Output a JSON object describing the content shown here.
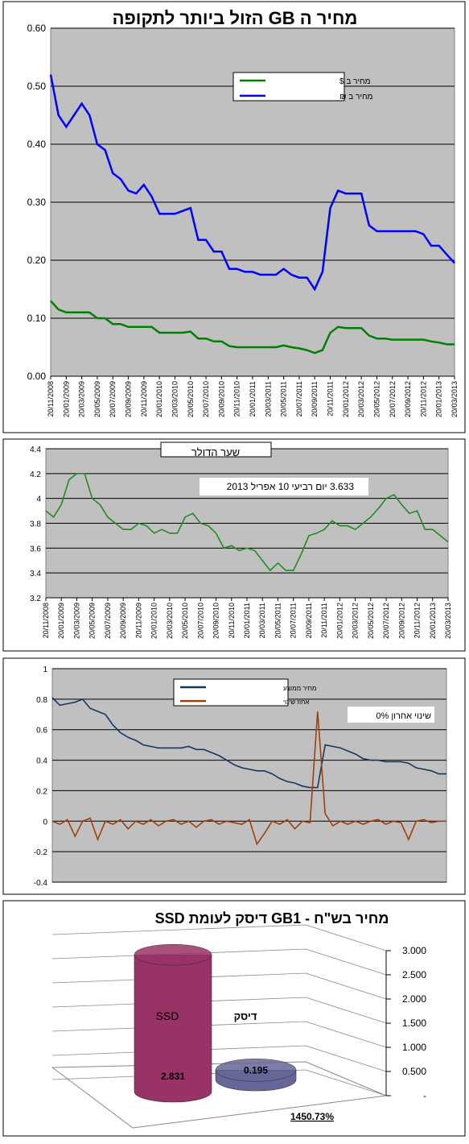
{
  "chart_data": [
    {
      "type": "line",
      "title": "מחיר ה GB הזול ביותר לתקופה",
      "categories": [
        "20/11/2008",
        null,
        "20/01/2009",
        null,
        "20/03/2009",
        null,
        "20/05/2009",
        null,
        "20/07/2009",
        null,
        "20/09/2009",
        null,
        "20/11/2009",
        null,
        "20/01/2010",
        null,
        "20/03/2010",
        null,
        "20/05/2010",
        null,
        "20/07/2010",
        null,
        "20/09/2010",
        null,
        "20/11/2010",
        null,
        "20/01/2011",
        null,
        "20/03/2011",
        null,
        "20/05/2011",
        null,
        "20/07/2011",
        null,
        "20/09/2011",
        null,
        "20/11/2011",
        null,
        "20/01/2012",
        null,
        "20/03/2012",
        null,
        "20/05/2012",
        null,
        "20/07/2012",
        null,
        "20/09/2012",
        null,
        "20/11/2012",
        null,
        "20/01/2013",
        null,
        "20/03/2013"
      ],
      "series": [
        {
          "name": "מחיר ב $",
          "color": "#008000",
          "values": [
            0.13,
            0.115,
            0.11,
            0.11,
            0.11,
            0.11,
            0.1,
            0.1,
            0.09,
            0.09,
            0.085,
            0.085,
            0.085,
            0.085,
            0.075,
            0.075,
            0.075,
            0.075,
            0.077,
            0.065,
            0.065,
            0.06,
            0.06,
            0.052,
            0.05,
            0.05,
            0.05,
            0.05,
            0.05,
            0.05,
            0.053,
            0.05,
            0.048,
            0.045,
            0.04,
            0.045,
            0.075,
            0.085,
            0.083,
            0.083,
            0.083,
            0.07,
            0.065,
            0.065,
            0.063,
            0.063,
            0.063,
            0.063,
            0.063,
            0.06,
            0.058,
            0.055,
            0.055
          ]
        },
        {
          "name": "מחיר ב ₪",
          "color": "#0000ff",
          "values": [
            0.52,
            0.45,
            0.43,
            0.45,
            0.47,
            0.45,
            0.4,
            0.39,
            0.35,
            0.34,
            0.32,
            0.315,
            0.33,
            0.31,
            0.28,
            0.28,
            0.28,
            0.285,
            0.29,
            0.235,
            0.235,
            0.215,
            0.215,
            0.185,
            0.185,
            0.18,
            0.18,
            0.175,
            0.175,
            0.175,
            0.185,
            0.175,
            0.17,
            0.17,
            0.15,
            0.18,
            0.29,
            0.32,
            0.315,
            0.315,
            0.315,
            0.26,
            0.25,
            0.25,
            0.25,
            0.25,
            0.25,
            0.25,
            0.245,
            0.225,
            0.225,
            0.21,
            0.195
          ]
        }
      ],
      "ylim": [
        0,
        0.6
      ],
      "yticks": [
        {
          "value": 0,
          "label": "0.00"
        },
        {
          "value": 0.1,
          "label": "0.10"
        },
        {
          "value": 0.2,
          "label": "0.20"
        },
        {
          "value": 0.3,
          "label": "0.30"
        },
        {
          "value": 0.4,
          "label": "0.40"
        },
        {
          "value": 0.5,
          "label": "0.50"
        },
        {
          "value": 0.6,
          "label": "0.60"
        }
      ],
      "grid": true,
      "legend": "top-right"
    },
    {
      "type": "line",
      "title": "שער הדולר",
      "annotation": "3.633 יום רביעי 10 אפריל 2013",
      "categories": [
        "20/11/2008",
        null,
        "20/01/2009",
        null,
        "20/03/2009",
        null,
        "20/05/2009",
        null,
        "20/07/2009",
        null,
        "20/09/2009",
        null,
        "20/11/2009",
        null,
        "20/01/2010",
        null,
        "20/03/2010",
        null,
        "20/05/2010",
        null,
        "20/07/2010",
        null,
        "20/09/2010",
        null,
        "20/11/2010",
        null,
        "20/01/2011",
        null,
        "20/03/2011",
        null,
        "20/05/2011",
        null,
        "20/07/2011",
        null,
        "20/09/2011",
        null,
        "20/11/2011",
        null,
        "20/01/2012",
        null,
        "20/03/2012",
        null,
        "20/05/2012",
        null,
        "20/07/2012",
        null,
        "20/09/2012",
        null,
        "20/11/2012",
        null,
        "20/01/2013",
        null,
        "20/03/2013"
      ],
      "series": [
        {
          "name": null,
          "color": "#228b22",
          "values": [
            3.9,
            3.85,
            3.95,
            4.15,
            4.2,
            4.2,
            4.0,
            3.95,
            3.85,
            3.8,
            3.75,
            3.75,
            3.8,
            3.78,
            3.72,
            3.75,
            3.72,
            3.72,
            3.85,
            3.88,
            3.8,
            3.78,
            3.72,
            3.6,
            3.62,
            3.58,
            3.6,
            3.58,
            3.5,
            3.42,
            3.48,
            3.42,
            3.42,
            3.55,
            3.7,
            3.72,
            3.75,
            3.82,
            3.78,
            3.78,
            3.75,
            3.8,
            3.85,
            3.92,
            4.0,
            4.03,
            3.95,
            3.88,
            3.9,
            3.75,
            3.75,
            3.7,
            3.65
          ]
        }
      ],
      "ylim": [
        3.2,
        4.4
      ],
      "yticks": [
        3.2,
        3.4,
        3.6,
        3.8,
        4,
        4.2,
        4.4
      ],
      "grid": true
    },
    {
      "type": "line",
      "annotation": "שינוי אחרון 0%",
      "series": [
        {
          "name": "מחיר ממוצע",
          "color": "#17375e",
          "values": [
            0.81,
            0.76,
            0.77,
            0.78,
            0.8,
            0.74,
            0.72,
            0.7,
            0.63,
            0.58,
            0.55,
            0.53,
            0.5,
            0.49,
            0.48,
            0.48,
            0.48,
            0.48,
            0.49,
            0.47,
            0.47,
            0.45,
            0.43,
            0.4,
            0.37,
            0.35,
            0.34,
            0.33,
            0.33,
            0.31,
            0.28,
            0.26,
            0.25,
            0.23,
            0.22,
            0.22,
            0.5,
            0.49,
            0.48,
            0.46,
            0.44,
            0.41,
            0.4,
            0.4,
            0.39,
            0.39,
            0.39,
            0.38,
            0.35,
            0.34,
            0.33,
            0.31,
            0.31
          ]
        },
        {
          "name": "אחוז שינוי",
          "color": "#a0400a",
          "values": [
            0,
            -0.02,
            0.01,
            -0.1,
            0,
            0.02,
            -0.12,
            0,
            -0.02,
            0.01,
            -0.05,
            0,
            -0.02,
            0.01,
            -0.03,
            0,
            0.01,
            -0.02,
            0,
            -0.04,
            0,
            0.01,
            -0.02,
            0,
            -0.01,
            -0.02,
            0.01,
            -0.15,
            -0.08,
            0,
            -0.02,
            0.01,
            -0.05,
            0,
            -0.01,
            0.72,
            0.05,
            -0.03,
            0,
            -0.02,
            0,
            -0.02,
            0,
            0.01,
            -0.02,
            0,
            -0.01,
            -0.12,
            0,
            0.01,
            -0.01,
            0,
            0
          ]
        }
      ],
      "ylim": [
        -0.4,
        1
      ],
      "yticks": [
        -0.4,
        -0.2,
        0,
        0.2,
        0.4,
        0.6,
        0.8,
        1
      ],
      "grid": true,
      "legend": "top-center"
    },
    {
      "type": "bar3d",
      "title": "מחיר בש\"ח - GB1 דיסק לעומת SSD",
      "categories": [
        "SSD",
        "דיסק"
      ],
      "series": [
        {
          "name": null,
          "colors": [
            "#993366",
            "#666699"
          ],
          "values": [
            2.831,
            0.195
          ]
        }
      ],
      "annotation": "1450.73%",
      "ylim": [
        0,
        3
      ],
      "yticks": [
        {
          "value": 0,
          "label": "-"
        },
        {
          "value": 0.5,
          "label": "0.500"
        },
        {
          "value": 1,
          "label": "1.000"
        },
        {
          "value": 1.5,
          "label": "1.500"
        },
        {
          "value": 2,
          "label": "2.000"
        },
        {
          "value": 2.5,
          "label": "2.500"
        },
        {
          "value": 3,
          "label": "3.000"
        }
      ],
      "grid": true
    }
  ]
}
